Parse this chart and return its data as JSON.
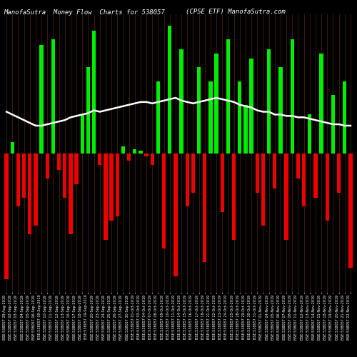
{
  "title_left": "ManofaSutra  Money Flow  Charts for 538057",
  "title_right": "(CPSE ETF) ManofaSutra.com",
  "background_color": "#000000",
  "bar_color_positive": "#00ee00",
  "bar_color_negative": "#ee0000",
  "line_color": "#ffffff",
  "thin_line_color": "#6B3000",
  "categories": [
    "BSE:538057 29-Aug-2019",
    "BSE:538057 02-Sep-2019",
    "BSE:538057 03-Sep-2019",
    "BSE:538057 04-Sep-2019",
    "BSE:538057 05-Sep-2019",
    "BSE:538057 06-Sep-2019",
    "BSE:538057 09-Sep-2019",
    "BSE:538057 10-Sep-2019",
    "BSE:538057 11-Sep-2019",
    "BSE:538057 12-Sep-2019",
    "BSE:538057 13-Sep-2019",
    "BSE:538057 16-Sep-2019",
    "BSE:538057 17-Sep-2019",
    "BSE:538057 18-Sep-2019",
    "BSE:538057 19-Sep-2019",
    "BSE:538057 20-Sep-2019",
    "BSE:538057 23-Sep-2019",
    "BSE:538057 24-Sep-2019",
    "BSE:538057 25-Sep-2019",
    "BSE:538057 26-Sep-2019",
    "BSE:538057 27-Sep-2019",
    "BSE:538057 30-Sep-2019",
    "BSE:538057 01-Oct-2019",
    "BSE:538057 03-Oct-2019",
    "BSE:538057 04-Oct-2019",
    "BSE:538057 07-Oct-2019",
    "BSE:538057 08-Oct-2019",
    "BSE:538057 09-Oct-2019",
    "BSE:538057 10-Oct-2019",
    "BSE:538057 11-Oct-2019",
    "BSE:538057 14-Oct-2019",
    "BSE:538057 15-Oct-2019",
    "BSE:538057 16-Oct-2019",
    "BSE:538057 17-Oct-2019",
    "BSE:538057 18-Oct-2019",
    "BSE:538057 21-Oct-2019",
    "BSE:538057 22-Oct-2019",
    "BSE:538057 23-Oct-2019",
    "BSE:538057 24-Oct-2019",
    "BSE:538057 25-Oct-2019",
    "BSE:538057 28-Oct-2019",
    "BSE:538057 29-Oct-2019",
    "BSE:538057 30-Oct-2019",
    "BSE:538057 31-Oct-2019",
    "BSE:538057 01-Nov-2019",
    "BSE:538057 04-Nov-2019",
    "BSE:538057 05-Nov-2019",
    "BSE:538057 06-Nov-2019",
    "BSE:538057 07-Nov-2019",
    "BSE:538057 08-Nov-2019",
    "BSE:538057 11-Nov-2019",
    "BSE:538057 12-Nov-2019",
    "BSE:538057 13-Nov-2019",
    "BSE:538057 14-Nov-2019",
    "BSE:538057 15-Nov-2019",
    "BSE:538057 18-Nov-2019",
    "BSE:538057 19-Nov-2019",
    "BSE:538057 20-Nov-2019",
    "BSE:538057 21-Nov-2019",
    "BSE:538057 22-Nov-2019"
  ],
  "values": [
    -90,
    8,
    -38,
    -32,
    -58,
    -52,
    78,
    -18,
    82,
    -12,
    -32,
    -58,
    -22,
    28,
    62,
    88,
    -8,
    -62,
    -48,
    -45,
    5,
    -5,
    3,
    2,
    -2,
    -8,
    52,
    -68,
    92,
    -88,
    75,
    -38,
    -28,
    62,
    -78,
    52,
    72,
    -42,
    82,
    -62,
    52,
    35,
    68,
    -28,
    -52,
    75,
    -25,
    62,
    -62,
    82,
    -18,
    -38,
    28,
    -32,
    72,
    -48,
    42,
    -28,
    52,
    -82
  ],
  "line_values_y": [
    30,
    28,
    26,
    24,
    22,
    20,
    20,
    21,
    22,
    23,
    24,
    26,
    27,
    28,
    29,
    31,
    30,
    31,
    32,
    33,
    34,
    35,
    36,
    37,
    37,
    36,
    37,
    38,
    39,
    40,
    38,
    37,
    36,
    37,
    38,
    39,
    40,
    39,
    38,
    37,
    35,
    34,
    33,
    31,
    30,
    30,
    28,
    28,
    27,
    27,
    26,
    26,
    25,
    24,
    23,
    22,
    21,
    21,
    20,
    20
  ],
  "ylim": [
    -100,
    100
  ],
  "title_fontsize": 6.5,
  "label_fontsize": 3.5
}
